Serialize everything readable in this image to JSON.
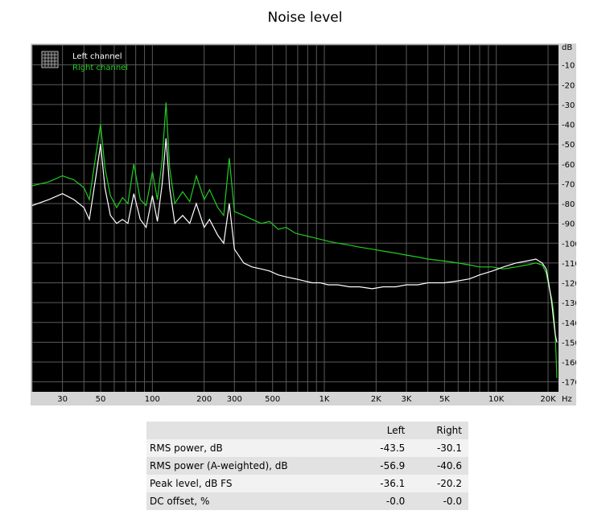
{
  "title": "Noise level",
  "chart_data": {
    "type": "line",
    "xscale": "log",
    "xlim": [
      20,
      23000
    ],
    "ylim": [
      -175,
      0
    ],
    "y_unit": "dB",
    "x_unit": "Hz",
    "grid": true,
    "legend_position": "top-left",
    "xticks": [
      {
        "value": 30,
        "label": "30"
      },
      {
        "value": 50,
        "label": "50"
      },
      {
        "value": 100,
        "label": "100"
      },
      {
        "value": 200,
        "label": "200"
      },
      {
        "value": 300,
        "label": "300"
      },
      {
        "value": 500,
        "label": "500"
      },
      {
        "value": 1000,
        "label": "1K"
      },
      {
        "value": 2000,
        "label": "2K"
      },
      {
        "value": 3000,
        "label": "3K"
      },
      {
        "value": 5000,
        "label": "5K"
      },
      {
        "value": 10000,
        "label": "10K"
      },
      {
        "value": 20000,
        "label": "20K"
      }
    ],
    "yticks": [
      -10,
      -20,
      -30,
      -40,
      -50,
      -60,
      -70,
      -80,
      -90,
      -100,
      -110,
      -120,
      -130,
      -140,
      -150,
      -160,
      -170
    ],
    "series": [
      {
        "name": "Right channel",
        "color": "#22cc22",
        "points": [
          [
            20,
            -71
          ],
          [
            25,
            -69
          ],
          [
            30,
            -66
          ],
          [
            35,
            -68
          ],
          [
            40,
            -72
          ],
          [
            43,
            -78
          ],
          [
            47,
            -55
          ],
          [
            50,
            -40
          ],
          [
            53,
            -62
          ],
          [
            57,
            -76
          ],
          [
            62,
            -82
          ],
          [
            67,
            -77
          ],
          [
            72,
            -80
          ],
          [
            78,
            -60
          ],
          [
            85,
            -78
          ],
          [
            92,
            -81
          ],
          [
            100,
            -64
          ],
          [
            107,
            -78
          ],
          [
            114,
            -58
          ],
          [
            120,
            -29
          ],
          [
            126,
            -62
          ],
          [
            135,
            -80
          ],
          [
            150,
            -74
          ],
          [
            165,
            -79
          ],
          [
            180,
            -66
          ],
          [
            200,
            -78
          ],
          [
            215,
            -73
          ],
          [
            240,
            -82
          ],
          [
            260,
            -86
          ],
          [
            280,
            -57
          ],
          [
            300,
            -84
          ],
          [
            340,
            -86
          ],
          [
            380,
            -88
          ],
          [
            430,
            -90
          ],
          [
            480,
            -89
          ],
          [
            540,
            -93
          ],
          [
            600,
            -92
          ],
          [
            680,
            -95
          ],
          [
            760,
            -96
          ],
          [
            850,
            -97
          ],
          [
            950,
            -98
          ],
          [
            1050,
            -99
          ],
          [
            1200,
            -100
          ],
          [
            1400,
            -101
          ],
          [
            1600,
            -102
          ],
          [
            1900,
            -103
          ],
          [
            2200,
            -104
          ],
          [
            2600,
            -105
          ],
          [
            3000,
            -106
          ],
          [
            3500,
            -107
          ],
          [
            4000,
            -108
          ],
          [
            5000,
            -109
          ],
          [
            6000,
            -110
          ],
          [
            7000,
            -111
          ],
          [
            8000,
            -112
          ],
          [
            9500,
            -112
          ],
          [
            11000,
            -113
          ],
          [
            13000,
            -112
          ],
          [
            15000,
            -111
          ],
          [
            17000,
            -110
          ],
          [
            18500,
            -111
          ],
          [
            19500,
            -115
          ],
          [
            20000,
            -120
          ],
          [
            20500,
            -124
          ],
          [
            21000,
            -128
          ],
          [
            21500,
            -134
          ],
          [
            22000,
            -145
          ],
          [
            22500,
            -168
          ]
        ]
      },
      {
        "name": "Left channel",
        "color": "#ffffff",
        "points": [
          [
            20,
            -81
          ],
          [
            25,
            -78
          ],
          [
            30,
            -75
          ],
          [
            35,
            -78
          ],
          [
            40,
            -82
          ],
          [
            43,
            -88
          ],
          [
            47,
            -66
          ],
          [
            50,
            -50
          ],
          [
            53,
            -72
          ],
          [
            57,
            -86
          ],
          [
            62,
            -90
          ],
          [
            67,
            -88
          ],
          [
            72,
            -90
          ],
          [
            78,
            -75
          ],
          [
            85,
            -88
          ],
          [
            92,
            -92
          ],
          [
            100,
            -76
          ],
          [
            107,
            -89
          ],
          [
            114,
            -70
          ],
          [
            120,
            -47
          ],
          [
            126,
            -72
          ],
          [
            135,
            -90
          ],
          [
            150,
            -86
          ],
          [
            165,
            -90
          ],
          [
            180,
            -80
          ],
          [
            200,
            -92
          ],
          [
            215,
            -88
          ],
          [
            240,
            -96
          ],
          [
            260,
            -100
          ],
          [
            280,
            -80
          ],
          [
            300,
            -103
          ],
          [
            340,
            -110
          ],
          [
            380,
            -112
          ],
          [
            430,
            -113
          ],
          [
            480,
            -114
          ],
          [
            540,
            -116
          ],
          [
            600,
            -117
          ],
          [
            680,
            -118
          ],
          [
            760,
            -119
          ],
          [
            850,
            -120
          ],
          [
            950,
            -120
          ],
          [
            1050,
            -121
          ],
          [
            1200,
            -121
          ],
          [
            1400,
            -122
          ],
          [
            1600,
            -122
          ],
          [
            1900,
            -123
          ],
          [
            2200,
            -122
          ],
          [
            2600,
            -122
          ],
          [
            3000,
            -121
          ],
          [
            3500,
            -121
          ],
          [
            4000,
            -120
          ],
          [
            5000,
            -120
          ],
          [
            6000,
            -119
          ],
          [
            7000,
            -118
          ],
          [
            8000,
            -116
          ],
          [
            9500,
            -114
          ],
          [
            11000,
            -112
          ],
          [
            13000,
            -110
          ],
          [
            15000,
            -109
          ],
          [
            17000,
            -108
          ],
          [
            18500,
            -110
          ],
          [
            19500,
            -113
          ],
          [
            20000,
            -118
          ],
          [
            20500,
            -124
          ],
          [
            21000,
            -130
          ],
          [
            21500,
            -138
          ],
          [
            22000,
            -146
          ],
          [
            22500,
            -150
          ]
        ]
      }
    ]
  },
  "stats": {
    "header": {
      "metric": "",
      "left": "Left",
      "right": "Right"
    },
    "rows": [
      {
        "metric": "RMS power, dB",
        "left": "-43.5",
        "right": "-30.1"
      },
      {
        "metric": "RMS power (A-weighted), dB",
        "left": "-56.9",
        "right": "-40.6"
      },
      {
        "metric": "Peak level, dB FS",
        "left": "-36.1",
        "right": "-20.2"
      },
      {
        "metric": "DC offset, %",
        "left": "-0.0",
        "right": "-0.0"
      }
    ]
  }
}
